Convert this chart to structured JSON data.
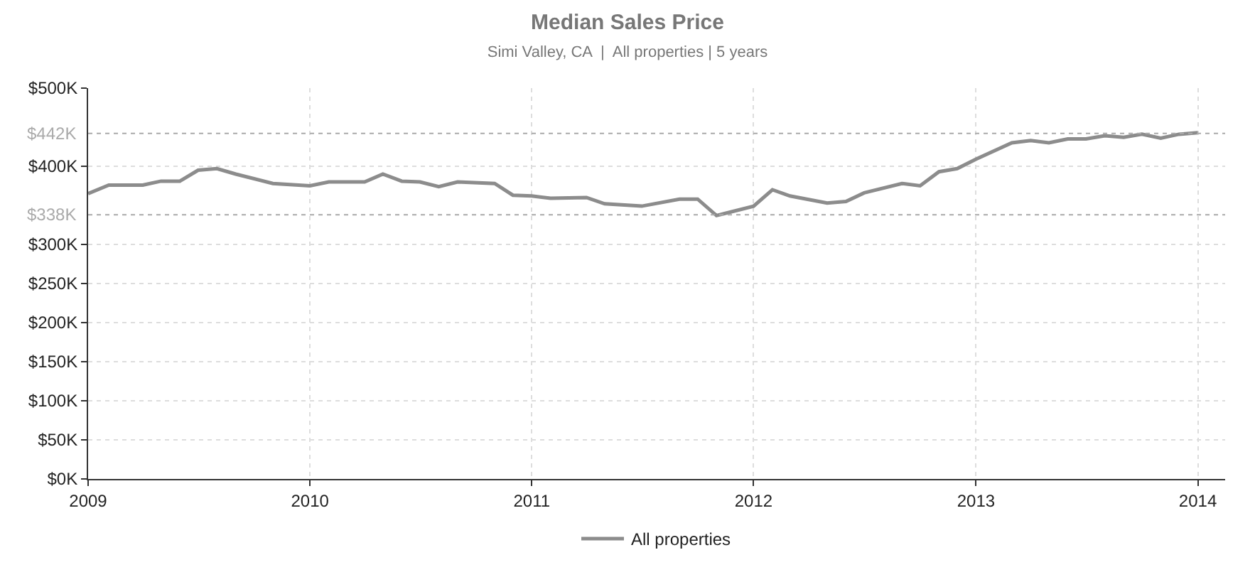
{
  "chart_data": {
    "type": "line",
    "title": "Median Sales Price",
    "subtitle": "Simi Valley, CA  |  All properties | 5 years",
    "x": [
      "2009-01-01",
      "2009-02-04",
      "2009-04-01",
      "2009-05-01",
      "2009-06-01",
      "2009-07-01",
      "2009-08-01",
      "2009-09-01",
      "2009-11-01",
      "2010-01-01",
      "2010-02-01",
      "2010-04-01",
      "2010-05-01",
      "2010-06-01",
      "2010-07-01",
      "2010-08-01",
      "2010-09-01",
      "2010-11-01",
      "2010-12-01",
      "2011-01-01",
      "2011-02-01",
      "2011-04-01",
      "2011-05-01",
      "2011-07-01",
      "2011-09-01",
      "2011-10-01",
      "2011-11-01",
      "2012-01-01",
      "2012-02-01",
      "2012-03-01",
      "2012-05-01",
      "2012-06-01",
      "2012-07-01",
      "2012-09-01",
      "2012-10-01",
      "2012-11-01",
      "2012-12-01",
      "2013-01-01",
      "2013-03-01",
      "2013-04-01",
      "2013-05-01",
      "2013-06-01",
      "2013-07-01",
      "2013-08-01",
      "2013-09-01",
      "2013-10-01",
      "2013-11-01",
      "2013-12-01",
      "2014-01-01"
    ],
    "series": [
      {
        "name": "All properties",
        "color": "#8c8c8c",
        "values": [
          365000,
          376000,
          376000,
          381000,
          381000,
          395000,
          397000,
          390000,
          378000,
          375000,
          380000,
          380000,
          390000,
          381000,
          380000,
          374000,
          380000,
          378000,
          363000,
          362000,
          359000,
          360000,
          352000,
          349000,
          358000,
          358000,
          337000,
          349000,
          370000,
          362000,
          353000,
          355000,
          366000,
          378000,
          375000,
          393000,
          397000,
          409000,
          430000,
          433000,
          430000,
          435000,
          435000,
          439000,
          437000,
          441000,
          436000,
          441000,
          443000
        ]
      }
    ],
    "xlim": [
      "2009-01-01",
      "2014-02-15"
    ],
    "xticks": [
      {
        "value": "2009-01-01",
        "label": "2009"
      },
      {
        "value": "2010-01-01",
        "label": "2010"
      },
      {
        "value": "2011-01-01",
        "label": "2011"
      },
      {
        "value": "2012-01-01",
        "label": "2012"
      },
      {
        "value": "2013-01-01",
        "label": "2013"
      },
      {
        "value": "2014-01-01",
        "label": "2014"
      }
    ],
    "ylim": [
      0,
      500000
    ],
    "yticks": [
      {
        "value": 0,
        "label": "$0K"
      },
      {
        "value": 50000,
        "label": "$50K"
      },
      {
        "value": 100000,
        "label": "$100K"
      },
      {
        "value": 150000,
        "label": "$150K"
      },
      {
        "value": 200000,
        "label": "$200K"
      },
      {
        "value": 250000,
        "label": "$250K"
      },
      {
        "value": 300000,
        "label": "$300K"
      },
      {
        "value": 400000,
        "label": "$400K"
      },
      {
        "value": 500000,
        "label": "$500K"
      }
    ],
    "ref_lines": [
      {
        "axis": "y",
        "value": 442000,
        "label": "$442K",
        "color": "#aaaaaa",
        "line_style": "dotted"
      },
      {
        "axis": "y",
        "value": 338000,
        "label": "$338K",
        "color": "#aaaaaa",
        "line_style": "dotted"
      }
    ],
    "grid": true,
    "legend": "bottom",
    "marker": "none",
    "line_style": "solid"
  }
}
